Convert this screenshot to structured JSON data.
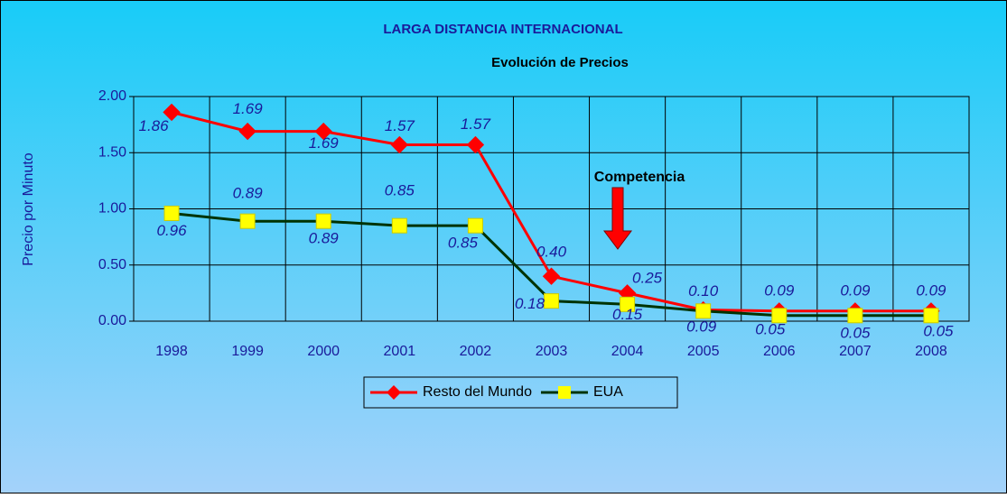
{
  "chart_data": {
    "type": "line",
    "title": "LARGA DISTANCIA INTERNACIONAL",
    "subtitle": "Evolución de Precios",
    "y_label": "Precio por Minuto",
    "annotation": "Competencia",
    "categories": [
      "1998",
      "1999",
      "2000",
      "2001",
      "2002",
      "2003",
      "2004",
      "2005",
      "2006",
      "2007",
      "2008"
    ],
    "series": [
      {
        "name": "Resto del Mundo",
        "color": "#ff0000",
        "marker_color": "#ff0000",
        "values": [
          1.86,
          1.69,
          1.69,
          1.57,
          1.57,
          0.4,
          0.25,
          0.1,
          0.09,
          0.09,
          0.09
        ],
        "value_labels": [
          "1.86",
          "1.69",
          "1.69",
          "1.57",
          "1.57",
          "0.40",
          "0.25",
          "0.10",
          "0.09",
          "0.09",
          "0.09"
        ]
      },
      {
        "name": "EUA",
        "color": "#003300",
        "marker_color": "#ffff00",
        "values": [
          0.96,
          0.89,
          0.89,
          0.85,
          0.85,
          0.18,
          0.15,
          0.09,
          0.05,
          0.05,
          0.05
        ],
        "value_labels": [
          "0.96",
          "0.89",
          "0.89",
          "0.85",
          "0.85",
          "0.18",
          "0.15",
          "0.09",
          "0.05",
          "0.05",
          "0.05"
        ]
      }
    ],
    "ylim": [
      0,
      2
    ],
    "yticks": [
      {
        "value": 0,
        "label": "0.00"
      },
      {
        "value": 0.5,
        "label": "0.50"
      },
      {
        "value": 1,
        "label": "1.00"
      },
      {
        "value": 1.5,
        "label": "1.50"
      },
      {
        "value": 2,
        "label": "2.00"
      }
    ],
    "grid": true,
    "legend": "bottom"
  }
}
